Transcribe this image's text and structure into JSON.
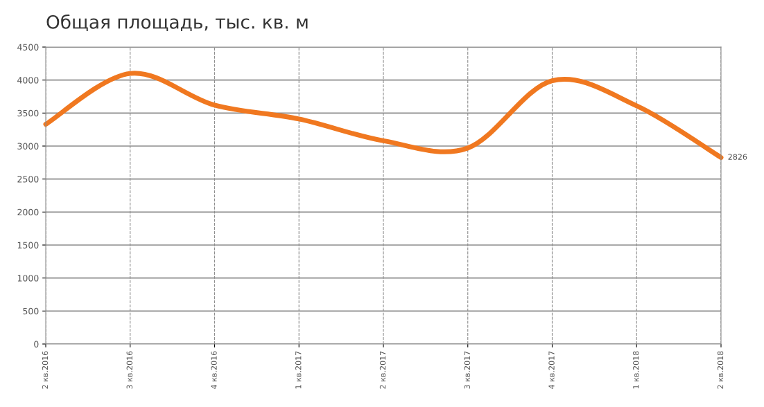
{
  "chart_data": {
    "type": "line",
    "title": "Общая площадь, тыс. кв. м",
    "categories": [
      "2 кв.2016",
      "3 кв.2016",
      "4 кв.2016",
      "1 кв.2017",
      "2 кв.2017",
      "3 кв.2017",
      "4 кв.2017",
      "1 кв.2018",
      "2 кв.2018"
    ],
    "series": [
      {
        "color": "#f07820",
        "values": [
          3330,
          4100,
          3620,
          3410,
          3080,
          2970,
          3990,
          3610,
          2826
        ],
        "value_labels": [
          null,
          null,
          null,
          null,
          null,
          null,
          null,
          null,
          "2826"
        ]
      }
    ],
    "ylim": [
      0,
      4500
    ],
    "yticks": [
      0,
      500,
      1000,
      1500,
      2000,
      2500,
      3000,
      3500,
      4000,
      4500
    ],
    "grid": true,
    "marker": "none",
    "line_style": "solid",
    "legend": false
  }
}
